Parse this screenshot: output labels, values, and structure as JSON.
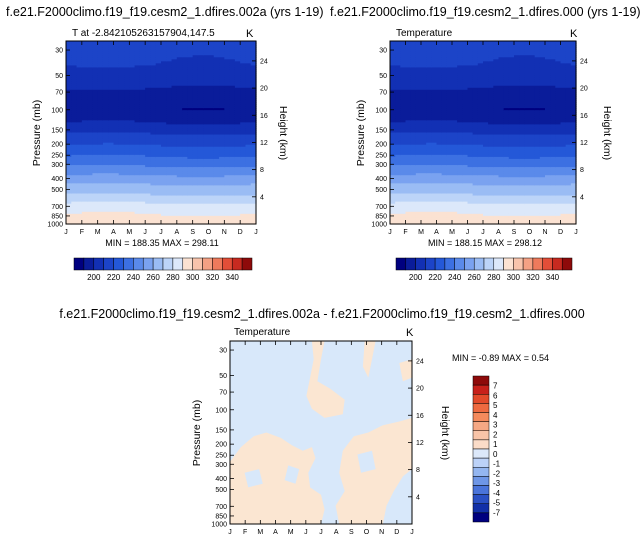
{
  "chart_data": [
    {
      "type": "heatmap",
      "title": "f.e21.F2000climo.f19_f19.cesm2_1.dfires.002a (yrs 1-19)",
      "subtitle": "T at -2.842105263157904,147.5",
      "units": "K",
      "ylabel": "Pressure (mb)",
      "y2label": "Height (km)",
      "x": [
        "J",
        "F",
        "M",
        "A",
        "M",
        "J",
        "J",
        "A",
        "S",
        "O",
        "N",
        "D",
        "J"
      ],
      "pressure_ticks": [
        "30",
        "50",
        "70",
        "100",
        "150",
        "200",
        "250",
        "300",
        "400",
        "500",
        "700",
        "850",
        "1000"
      ],
      "pressure_values": [
        30,
        50,
        70,
        100,
        150,
        200,
        250,
        300,
        400,
        500,
        700,
        850,
        1000
      ],
      "height_ticks": [
        "24",
        "20",
        "16",
        "12",
        "8",
        "4"
      ],
      "height_values": [
        24,
        20,
        16,
        12,
        8,
        4
      ],
      "stats": "MIN = 188.35 MAX = 298.11",
      "colorbar_labels": [
        "200",
        "220",
        "240",
        "260",
        "280",
        "300",
        "320",
        "340"
      ],
      "colorbar_levels": [
        190,
        200,
        210,
        220,
        230,
        240,
        250,
        260,
        270,
        280,
        290,
        300,
        310,
        320,
        330,
        340,
        350
      ],
      "colorbar_colors": [
        "#00007f",
        "#0a1c9a",
        "#1230b4",
        "#1c44c8",
        "#2458d8",
        "#3c70e2",
        "#5a8aea",
        "#7aa2f0",
        "#9abcf4",
        "#bcd4f8",
        "#dce8fa",
        "#fbe2d2",
        "#f8c4ac",
        "#f4a184",
        "#ee7a5c",
        "#e24e38",
        "#c72a20",
        "#8e0a0a"
      ],
      "profile": [
        {
          "p": 25,
          "t": 214
        },
        {
          "p": 40,
          "t": 210
        },
        {
          "p": 60,
          "t": 202
        },
        {
          "p": 80,
          "t": 194
        },
        {
          "p": 100,
          "t": 191
        },
        {
          "p": 130,
          "t": 200
        },
        {
          "p": 170,
          "t": 212
        },
        {
          "p": 220,
          "t": 223
        },
        {
          "p": 280,
          "t": 234
        },
        {
          "p": 350,
          "t": 246
        },
        {
          "p": 430,
          "t": 258
        },
        {
          "p": 520,
          "t": 266
        },
        {
          "p": 620,
          "t": 277
        },
        {
          "p": 750,
          "t": 287
        },
        {
          "p": 900,
          "t": 293
        },
        {
          "p": 1000,
          "t": 298
        }
      ]
    },
    {
      "type": "heatmap",
      "title": "f.e21.F2000climo.f19_f19.cesm2_1.dfires.000 (yrs 1-19)",
      "subtitle": "Temperature",
      "units": "K",
      "ylabel": "Pressure (mb)",
      "y2label": "Height (km)",
      "x": [
        "J",
        "F",
        "M",
        "A",
        "M",
        "J",
        "J",
        "A",
        "S",
        "O",
        "N",
        "D",
        "J"
      ],
      "pressure_ticks": [
        "30",
        "50",
        "70",
        "100",
        "150",
        "200",
        "250",
        "300",
        "400",
        "500",
        "700",
        "850",
        "1000"
      ],
      "pressure_values": [
        30,
        50,
        70,
        100,
        150,
        200,
        250,
        300,
        400,
        500,
        700,
        850,
        1000
      ],
      "height_ticks": [
        "24",
        "20",
        "16",
        "12",
        "8",
        "4"
      ],
      "height_values": [
        24,
        20,
        16,
        12,
        8,
        4
      ],
      "stats": "MIN = 188.15 MAX = 298.12",
      "colorbar_labels": [
        "200",
        "220",
        "240",
        "260",
        "280",
        "300",
        "320",
        "340"
      ],
      "colorbar_levels": [
        190,
        200,
        210,
        220,
        230,
        240,
        250,
        260,
        270,
        280,
        290,
        300,
        310,
        320,
        330,
        340,
        350
      ],
      "colorbar_colors": [
        "#00007f",
        "#0a1c9a",
        "#1230b4",
        "#1c44c8",
        "#2458d8",
        "#3c70e2",
        "#5a8aea",
        "#7aa2f0",
        "#9abcf4",
        "#bcd4f8",
        "#dce8fa",
        "#fbe2d2",
        "#f8c4ac",
        "#f4a184",
        "#ee7a5c",
        "#e24e38",
        "#c72a20",
        "#8e0a0a"
      ],
      "profile": [
        {
          "p": 25,
          "t": 214
        },
        {
          "p": 40,
          "t": 210
        },
        {
          "p": 60,
          "t": 202
        },
        {
          "p": 80,
          "t": 194
        },
        {
          "p": 100,
          "t": 191
        },
        {
          "p": 130,
          "t": 200
        },
        {
          "p": 170,
          "t": 212
        },
        {
          "p": 220,
          "t": 223
        },
        {
          "p": 280,
          "t": 234
        },
        {
          "p": 350,
          "t": 246
        },
        {
          "p": 430,
          "t": 258
        },
        {
          "p": 520,
          "t": 266
        },
        {
          "p": 620,
          "t": 277
        },
        {
          "p": 750,
          "t": 287
        },
        {
          "p": 900,
          "t": 293
        },
        {
          "p": 1000,
          "t": 298
        }
      ]
    },
    {
      "type": "heatmap",
      "title": "f.e21.F2000climo.f19_f19.cesm2_1.dfires.002a - f.e21.F2000climo.f19_f19.cesm2_1.dfires.000",
      "subtitle": "Temperature",
      "units": "K",
      "ylabel": "Pressure (mb)",
      "y2label": "Height (km)",
      "x": [
        "J",
        "F",
        "M",
        "A",
        "M",
        "J",
        "J",
        "A",
        "S",
        "O",
        "N",
        "D",
        "J"
      ],
      "pressure_ticks": [
        "30",
        "50",
        "70",
        "100",
        "150",
        "200",
        "250",
        "300",
        "400",
        "500",
        "700",
        "850",
        "1000"
      ],
      "pressure_values": [
        30,
        50,
        70,
        100,
        150,
        200,
        250,
        300,
        400,
        500,
        700,
        850,
        1000
      ],
      "height_ticks": [
        "24",
        "20",
        "16",
        "12",
        "8",
        "4"
      ],
      "height_values": [
        24,
        20,
        16,
        12,
        8,
        4
      ],
      "stats": "MIN = -0.89 MAX =  0.54",
      "colorbar_labels": [
        "7",
        "6",
        "5",
        "4",
        "3",
        "2",
        "1",
        "0",
        "-1",
        "-2",
        "-3",
        "-4",
        "-5",
        "-7"
      ],
      "colorbar_colors": [
        "#8e0a0a",
        "#c7201a",
        "#e24a2a",
        "#ee6a40",
        "#f48a5c",
        "#f6a884",
        "#f8c4a8",
        "#fbdcc8",
        "#dce8fa",
        "#bcd2f8",
        "#94b6f0",
        "#6e96e6",
        "#4a74da",
        "#2a50c4",
        "#1230a8",
        "#00007f"
      ],
      "background_level": "0 to -1 (light blue)",
      "patch_level": "0 to 1 (light peach)",
      "patch_color": "#fbe6d2",
      "background_color": "#d8e8fa"
    }
  ]
}
